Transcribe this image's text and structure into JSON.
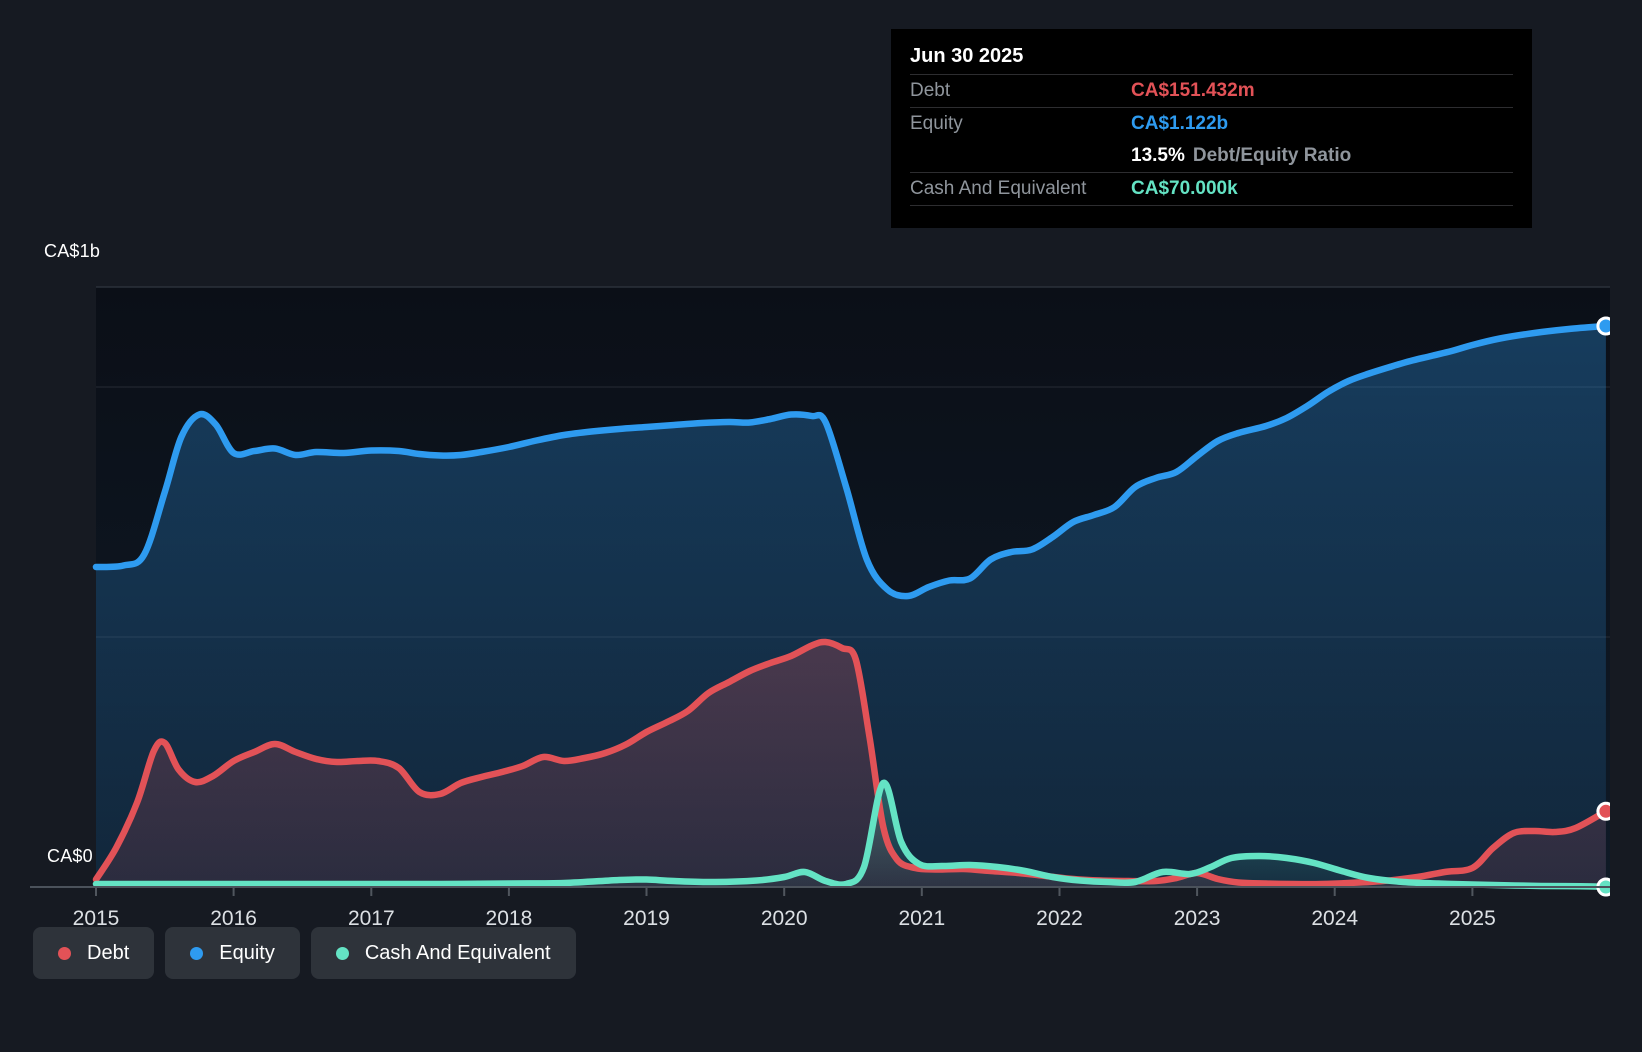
{
  "axis": {
    "y_top_label": "CA$1b",
    "y_zero_label": "CA$0"
  },
  "tooltip": {
    "date": "Jun 30 2025",
    "debt_label": "Debt",
    "debt_value": "CA$151.432m",
    "equity_label": "Equity",
    "equity_value": "CA$1.122b",
    "ratio_value": "13.5%",
    "ratio_label": "Debt/Equity Ratio",
    "cash_label": "Cash And Equivalent",
    "cash_value": "CA$70.000k"
  },
  "legend": {
    "items": [
      {
        "key": "debt",
        "label": "Debt"
      },
      {
        "key": "equity",
        "label": "Equity"
      },
      {
        "key": "cash",
        "label": "Cash And Equivalent"
      }
    ]
  },
  "colors": {
    "debt": "#e25257",
    "equity": "#2e9bf0",
    "cash": "#64e3c4",
    "grid": "#272c35",
    "plot_top_border": "#2b313a",
    "axis_line": "#4b525b",
    "tick": "#50565e",
    "year_label": "#dce0e4",
    "panel_bg": "#161a22",
    "plot_bg_top": "#0b0f17",
    "plot_bg_bottom": "#0f1a27",
    "tooltip_bg": "#000000",
    "tooltip_label": "#8f959c",
    "marker_ring": "#ffffff"
  },
  "chart_data": {
    "type": "area",
    "title": "Debt to Equity history (CA$, billions)",
    "x_ticks": [
      2015,
      2016,
      2017,
      2018,
      2019,
      2020,
      2021,
      2022,
      2023,
      2024,
      2025
    ],
    "xlim": [
      2015,
      2026
    ],
    "ylim": [
      0,
      1.2
    ],
    "y_gridlines": [
      0.5,
      1.0
    ],
    "y_unit": "CA$ billions",
    "grid": "horizontal-only",
    "legend_position": "bottom-left",
    "last_point_date": "Jun 30 2025",
    "series": [
      {
        "name": "Equity",
        "key": "equity",
        "color": "#2e9bf0",
        "end_value_label": "CA$1.122b",
        "points": [
          [
            2015.0,
            0.64
          ],
          [
            2015.2,
            0.643
          ],
          [
            2015.35,
            0.665
          ],
          [
            2015.5,
            0.79
          ],
          [
            2015.62,
            0.9
          ],
          [
            2015.75,
            0.945
          ],
          [
            2015.87,
            0.925
          ],
          [
            2016.0,
            0.868
          ],
          [
            2016.15,
            0.872
          ],
          [
            2016.3,
            0.877
          ],
          [
            2016.45,
            0.864
          ],
          [
            2016.6,
            0.87
          ],
          [
            2016.8,
            0.868
          ],
          [
            2017.0,
            0.873
          ],
          [
            2017.2,
            0.872
          ],
          [
            2017.35,
            0.866
          ],
          [
            2017.5,
            0.863
          ],
          [
            2017.65,
            0.864
          ],
          [
            2017.8,
            0.87
          ],
          [
            2018.0,
            0.88
          ],
          [
            2018.2,
            0.893
          ],
          [
            2018.4,
            0.904
          ],
          [
            2018.6,
            0.911
          ],
          [
            2018.8,
            0.916
          ],
          [
            2019.0,
            0.92
          ],
          [
            2019.2,
            0.924
          ],
          [
            2019.4,
            0.928
          ],
          [
            2019.6,
            0.93
          ],
          [
            2019.75,
            0.929
          ],
          [
            2019.9,
            0.936
          ],
          [
            2020.05,
            0.945
          ],
          [
            2020.2,
            0.942
          ],
          [
            2020.3,
            0.93
          ],
          [
            2020.45,
            0.8
          ],
          [
            2020.6,
            0.655
          ],
          [
            2020.75,
            0.595
          ],
          [
            2020.9,
            0.582
          ],
          [
            2021.05,
            0.6
          ],
          [
            2021.2,
            0.613
          ],
          [
            2021.35,
            0.617
          ],
          [
            2021.5,
            0.655
          ],
          [
            2021.65,
            0.67
          ],
          [
            2021.8,
            0.675
          ],
          [
            2021.95,
            0.7
          ],
          [
            2022.1,
            0.73
          ],
          [
            2022.25,
            0.744
          ],
          [
            2022.4,
            0.76
          ],
          [
            2022.55,
            0.8
          ],
          [
            2022.7,
            0.818
          ],
          [
            2022.85,
            0.83
          ],
          [
            2023.0,
            0.862
          ],
          [
            2023.15,
            0.892
          ],
          [
            2023.3,
            0.908
          ],
          [
            2023.5,
            0.922
          ],
          [
            2023.65,
            0.938
          ],
          [
            2023.8,
            0.962
          ],
          [
            2023.95,
            0.99
          ],
          [
            2024.1,
            1.012
          ],
          [
            2024.25,
            1.027
          ],
          [
            2024.4,
            1.04
          ],
          [
            2024.55,
            1.052
          ],
          [
            2024.7,
            1.062
          ],
          [
            2024.85,
            1.072
          ],
          [
            2025.0,
            1.084
          ],
          [
            2025.2,
            1.097
          ],
          [
            2025.45,
            1.108
          ],
          [
            2025.7,
            1.116
          ],
          [
            2025.97,
            1.122
          ]
        ]
      },
      {
        "name": "Debt",
        "key": "debt",
        "color": "#e25257",
        "end_value_label": "CA$151.432m",
        "points": [
          [
            2015.0,
            0.015
          ],
          [
            2015.15,
            0.08
          ],
          [
            2015.3,
            0.17
          ],
          [
            2015.42,
            0.272
          ],
          [
            2015.5,
            0.288
          ],
          [
            2015.6,
            0.235
          ],
          [
            2015.72,
            0.21
          ],
          [
            2015.85,
            0.222
          ],
          [
            2016.0,
            0.252
          ],
          [
            2016.15,
            0.27
          ],
          [
            2016.3,
            0.286
          ],
          [
            2016.45,
            0.27
          ],
          [
            2016.6,
            0.256
          ],
          [
            2016.75,
            0.25
          ],
          [
            2016.9,
            0.252
          ],
          [
            2017.05,
            0.252
          ],
          [
            2017.2,
            0.238
          ],
          [
            2017.35,
            0.19
          ],
          [
            2017.5,
            0.186
          ],
          [
            2017.65,
            0.208
          ],
          [
            2017.8,
            0.22
          ],
          [
            2017.95,
            0.23
          ],
          [
            2018.1,
            0.242
          ],
          [
            2018.25,
            0.26
          ],
          [
            2018.4,
            0.252
          ],
          [
            2018.55,
            0.258
          ],
          [
            2018.7,
            0.268
          ],
          [
            2018.85,
            0.285
          ],
          [
            2019.0,
            0.31
          ],
          [
            2019.15,
            0.33
          ],
          [
            2019.3,
            0.352
          ],
          [
            2019.45,
            0.388
          ],
          [
            2019.6,
            0.41
          ],
          [
            2019.75,
            0.432
          ],
          [
            2019.9,
            0.448
          ],
          [
            2020.05,
            0.462
          ],
          [
            2020.2,
            0.483
          ],
          [
            2020.3,
            0.49
          ],
          [
            2020.42,
            0.478
          ],
          [
            2020.52,
            0.455
          ],
          [
            2020.62,
            0.3
          ],
          [
            2020.72,
            0.12
          ],
          [
            2020.82,
            0.055
          ],
          [
            2020.95,
            0.038
          ],
          [
            2021.1,
            0.035
          ],
          [
            2021.3,
            0.036
          ],
          [
            2021.5,
            0.032
          ],
          [
            2021.7,
            0.028
          ],
          [
            2021.9,
            0.022
          ],
          [
            2022.1,
            0.016
          ],
          [
            2022.3,
            0.013
          ],
          [
            2022.5,
            0.012
          ],
          [
            2022.7,
            0.012
          ],
          [
            2022.85,
            0.018
          ],
          [
            2023.0,
            0.028
          ],
          [
            2023.15,
            0.016
          ],
          [
            2023.3,
            0.009
          ],
          [
            2023.5,
            0.007
          ],
          [
            2023.7,
            0.006
          ],
          [
            2023.9,
            0.006
          ],
          [
            2024.1,
            0.008
          ],
          [
            2024.35,
            0.012
          ],
          [
            2024.6,
            0.02
          ],
          [
            2024.8,
            0.03
          ],
          [
            2025.0,
            0.038
          ],
          [
            2025.15,
            0.078
          ],
          [
            2025.3,
            0.108
          ],
          [
            2025.45,
            0.112
          ],
          [
            2025.6,
            0.11
          ],
          [
            2025.75,
            0.118
          ],
          [
            2025.97,
            0.1514
          ]
        ]
      },
      {
        "name": "Cash And Equivalent",
        "key": "cash",
        "color": "#64e3c4",
        "end_value_label": "CA$70.000k",
        "points": [
          [
            2015.0,
            0.006
          ],
          [
            2015.5,
            0.006
          ],
          [
            2016.0,
            0.006
          ],
          [
            2016.5,
            0.006
          ],
          [
            2017.0,
            0.006
          ],
          [
            2017.5,
            0.006
          ],
          [
            2018.0,
            0.007
          ],
          [
            2018.4,
            0.008
          ],
          [
            2018.8,
            0.014
          ],
          [
            2019.0,
            0.015
          ],
          [
            2019.2,
            0.012
          ],
          [
            2019.5,
            0.01
          ],
          [
            2019.8,
            0.013
          ],
          [
            2020.0,
            0.02
          ],
          [
            2020.15,
            0.03
          ],
          [
            2020.3,
            0.012
          ],
          [
            2020.45,
            0.006
          ],
          [
            2020.58,
            0.04
          ],
          [
            2020.72,
            0.208
          ],
          [
            2020.85,
            0.09
          ],
          [
            2020.98,
            0.046
          ],
          [
            2021.15,
            0.042
          ],
          [
            2021.35,
            0.044
          ],
          [
            2021.55,
            0.04
          ],
          [
            2021.75,
            0.032
          ],
          [
            2021.95,
            0.02
          ],
          [
            2022.15,
            0.013
          ],
          [
            2022.35,
            0.01
          ],
          [
            2022.55,
            0.01
          ],
          [
            2022.75,
            0.03
          ],
          [
            2022.95,
            0.026
          ],
          [
            2023.1,
            0.04
          ],
          [
            2023.25,
            0.058
          ],
          [
            2023.45,
            0.062
          ],
          [
            2023.65,
            0.058
          ],
          [
            2023.85,
            0.048
          ],
          [
            2024.05,
            0.032
          ],
          [
            2024.25,
            0.018
          ],
          [
            2024.5,
            0.01
          ],
          [
            2024.75,
            0.007
          ],
          [
            2025.0,
            0.005
          ],
          [
            2025.5,
            0.002
          ],
          [
            2025.97,
            0.0001
          ]
        ]
      }
    ]
  }
}
